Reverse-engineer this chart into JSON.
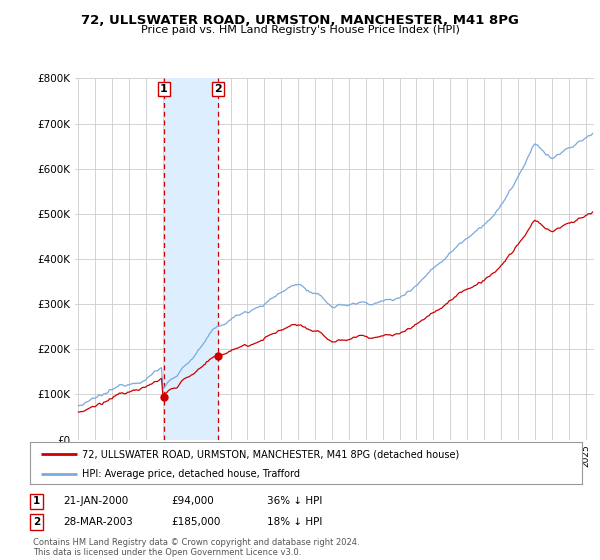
{
  "title": "72, ULLSWATER ROAD, URMSTON, MANCHESTER, M41 8PG",
  "subtitle": "Price paid vs. HM Land Registry's House Price Index (HPI)",
  "legend_label_red": "72, ULLSWATER ROAD, URMSTON, MANCHESTER, M41 8PG (detached house)",
  "legend_label_blue": "HPI: Average price, detached house, Trafford",
  "footnote": "Contains HM Land Registry data © Crown copyright and database right 2024.\nThis data is licensed under the Open Government Licence v3.0.",
  "marker1_date": "21-JAN-2000",
  "marker1_price": "£94,000",
  "marker1_hpi": "36% ↓ HPI",
  "marker1_x": 2000.06,
  "marker1_y": 94000,
  "marker2_date": "28-MAR-2003",
  "marker2_price": "£185,000",
  "marker2_hpi": "18% ↓ HPI",
  "marker2_x": 2003.24,
  "marker2_y": 185000,
  "ylim": [
    0,
    800000
  ],
  "xlim": [
    1994.8,
    2025.5
  ],
  "red_color": "#cc0000",
  "blue_color": "#7aaadd",
  "shaded_color": "#ddeeff",
  "vline_color": "#cc0000",
  "grid_color": "#cccccc",
  "background_color": "#ffffff"
}
